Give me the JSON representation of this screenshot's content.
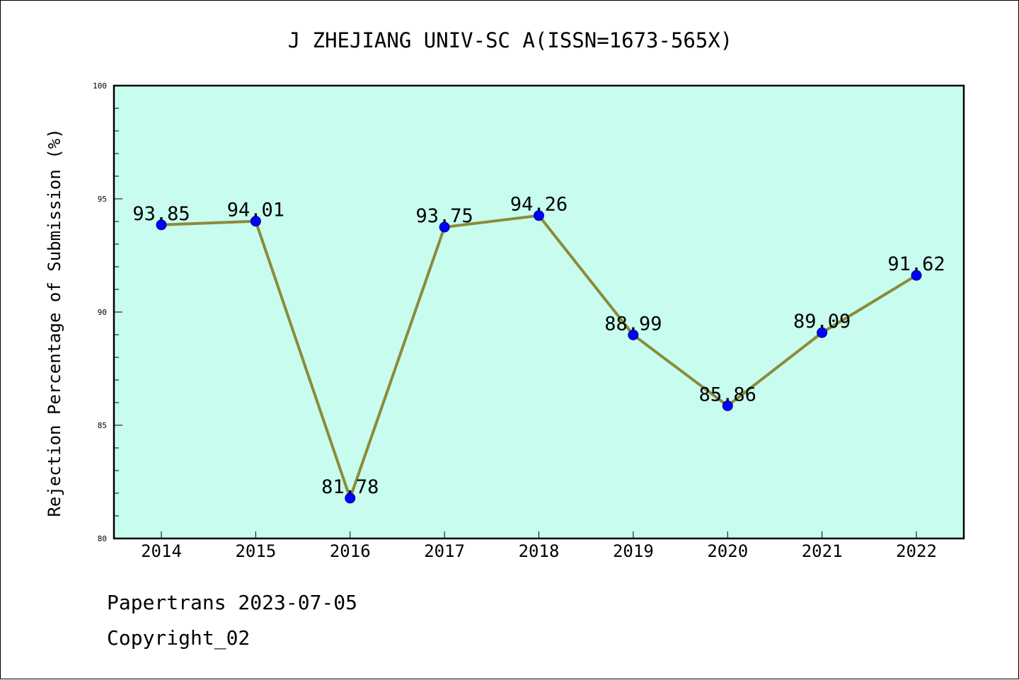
{
  "chart_data": {
    "type": "line",
    "title": "J ZHEJIANG UNIV-SC A(ISSN=1673-565X)",
    "xlabel": "",
    "ylabel": "Rejection Percentage of Submission (%)",
    "categories": [
      "2014",
      "2015",
      "2016",
      "2017",
      "2018",
      "2019",
      "2020",
      "2021",
      "2022"
    ],
    "values": [
      93.85,
      94.01,
      81.78,
      93.75,
      94.26,
      88.99,
      85.86,
      89.09,
      91.62
    ],
    "data_labels": [
      "93.85",
      "94.01",
      "81.78",
      "93.75",
      "94.26",
      "88.99",
      "85.86",
      "89.09",
      "91.62"
    ],
    "ylim": [
      80,
      100
    ],
    "yticks": [
      80,
      85,
      90,
      95,
      100
    ],
    "grid": false,
    "colors": {
      "plot_background": "#c8fcee",
      "line": "#8b8b3a",
      "marker": "#0000ff"
    }
  },
  "footer": {
    "line1": "Papertrans 2023-07-05",
    "line2": "Copyright_02"
  }
}
